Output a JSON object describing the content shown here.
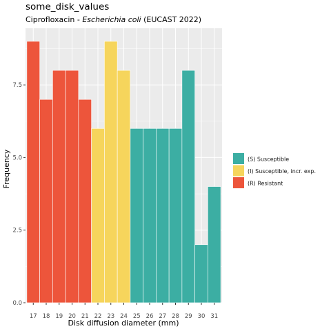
{
  "chart_data": {
    "type": "bar",
    "title": "some_disk_values",
    "subtitle_prefix": "Ciprofloxacin - ",
    "subtitle_italic": "Escherichia coli",
    "subtitle_suffix": " (EUCAST 2022)",
    "xlabel": "Disk diffusion diameter (mm)",
    "ylabel": "Frequency",
    "categories": [
      "17",
      "18",
      "19",
      "20",
      "21",
      "22",
      "23",
      "24",
      "25",
      "26",
      "27",
      "28",
      "29",
      "30",
      "31"
    ],
    "values": [
      9,
      7,
      8,
      8,
      7,
      6,
      9,
      8,
      6,
      6,
      6,
      6,
      8,
      2,
      4
    ],
    "interpretation": [
      "R",
      "R",
      "R",
      "R",
      "R",
      "I",
      "I",
      "I",
      "S",
      "S",
      "S",
      "S",
      "S",
      "S",
      "S"
    ],
    "ylim": [
      0,
      9.45
    ],
    "yticks": [
      0,
      2.5,
      5,
      7.5
    ],
    "ytick_labels": [
      "0.0",
      "2.5",
      "5.0",
      "7.5"
    ],
    "grid": true,
    "legend_position": "right",
    "legend": [
      {
        "key": "S",
        "label": "(S) Susceptible",
        "color": "#3CAEA3"
      },
      {
        "key": "I",
        "label": "(I) Susceptible, incr. exp.",
        "color": "#F6D55C"
      },
      {
        "key": "R",
        "label": "(R) Resistant",
        "color": "#ED553B"
      }
    ],
    "panel_color": "#EBEBEB",
    "grid_color": "#FFFFFF"
  }
}
